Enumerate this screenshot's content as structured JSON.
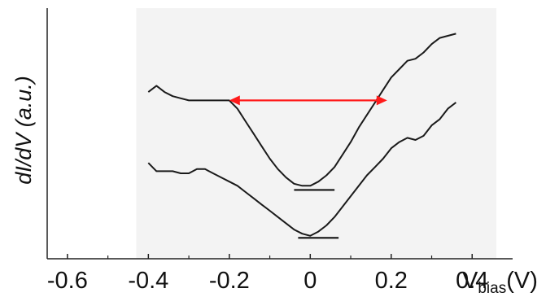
{
  "chart_data": {
    "type": "line",
    "title": "",
    "ylabel": "dI/dV (a.u.)",
    "xlabel_main": "V",
    "xlabel_sub": "bias",
    "xlabel_unit": "(V)",
    "xlim": [
      -0.65,
      0.5
    ],
    "ylim": [
      0,
      1
    ],
    "xticks": [
      -0.6,
      -0.4,
      -0.2,
      0,
      0.2,
      0.4
    ],
    "xtick_labels": [
      "-0.6",
      "-0.4",
      "-0.2",
      "0",
      "0.2",
      "0.4"
    ],
    "y_ticks_labeled": false,
    "shaded_region_x": [
      -0.43,
      0.46
    ],
    "series": [
      {
        "x": [
          -0.4,
          -0.38,
          -0.36,
          -0.34,
          -0.32,
          -0.3,
          -0.28,
          -0.26,
          -0.24,
          -0.22,
          -0.2,
          -0.18,
          -0.16,
          -0.14,
          -0.12,
          -0.1,
          -0.08,
          -0.06,
          -0.04,
          -0.02,
          0.0,
          0.02,
          0.04,
          0.06,
          0.08,
          0.1,
          0.12,
          0.14,
          0.16,
          0.18,
          0.2,
          0.22,
          0.24,
          0.26,
          0.28,
          0.3,
          0.32,
          0.34,
          0.36
        ],
        "y": [
          0.73,
          0.76,
          0.73,
          0.71,
          0.7,
          0.69,
          0.69,
          0.69,
          0.69,
          0.69,
          0.69,
          0.65,
          0.59,
          0.53,
          0.47,
          0.41,
          0.36,
          0.32,
          0.29,
          0.28,
          0.28,
          0.3,
          0.33,
          0.37,
          0.43,
          0.49,
          0.56,
          0.62,
          0.68,
          0.74,
          0.8,
          0.84,
          0.88,
          0.89,
          0.92,
          0.96,
          0.99,
          1.0,
          1.01
        ],
        "color": "#1a1a1a"
      },
      {
        "x": [
          -0.4,
          -0.38,
          -0.36,
          -0.34,
          -0.32,
          -0.3,
          -0.28,
          -0.26,
          -0.24,
          -0.22,
          -0.2,
          -0.18,
          -0.16,
          -0.14,
          -0.12,
          -0.1,
          -0.08,
          -0.06,
          -0.04,
          -0.02,
          0.0,
          0.02,
          0.04,
          0.06,
          0.08,
          0.1,
          0.12,
          0.14,
          0.16,
          0.18,
          0.2,
          0.22,
          0.24,
          0.26,
          0.28,
          0.3,
          0.32,
          0.34,
          0.36
        ],
        "y": [
          0.39,
          0.35,
          0.35,
          0.35,
          0.34,
          0.34,
          0.36,
          0.36,
          0.34,
          0.32,
          0.3,
          0.28,
          0.25,
          0.22,
          0.19,
          0.16,
          0.13,
          0.1,
          0.07,
          0.05,
          0.04,
          0.06,
          0.09,
          0.13,
          0.18,
          0.23,
          0.28,
          0.33,
          0.37,
          0.41,
          0.46,
          0.49,
          0.51,
          0.5,
          0.52,
          0.57,
          0.6,
          0.65,
          0.68
        ],
        "color": "#1a1a1a"
      }
    ],
    "annotations": {
      "gap_arrow": {
        "x_start": -0.2,
        "x_end": 0.19,
        "y": 0.69,
        "color": "#ff1a1a"
      },
      "baseline_marks": [
        {
          "x_center": 0.01,
          "half_width": 0.05,
          "y": 0.26
        },
        {
          "x_center": 0.02,
          "half_width": 0.05,
          "y": 0.03
        }
      ]
    }
  }
}
